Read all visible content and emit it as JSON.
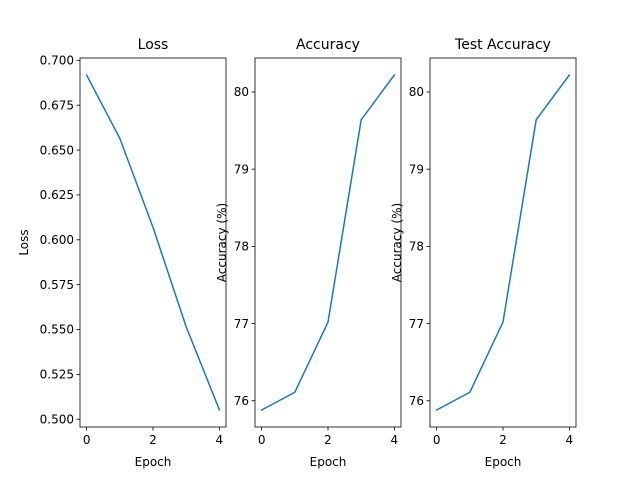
{
  "chart_data": [
    {
      "type": "line",
      "title": "Loss",
      "xlabel": "Epoch",
      "ylabel": "Loss",
      "x": [
        0,
        1,
        2,
        3,
        4
      ],
      "values": [
        0.6918,
        0.6565,
        0.6069,
        0.5515,
        0.5053
      ],
      "xlim": [
        -0.2,
        4.2
      ],
      "ylim": [
        0.4957,
        0.7013
      ],
      "xticks": [
        0,
        2,
        4
      ],
      "yticks": [
        0.5,
        0.525,
        0.55,
        0.575,
        0.6,
        0.625,
        0.65,
        0.675,
        0.7
      ],
      "ytick_labels": [
        "0.500",
        "0.525",
        "0.550",
        "0.575",
        "0.600",
        "0.625",
        "0.650",
        "0.675",
        "0.700"
      ],
      "color": "#1f77b4"
    },
    {
      "type": "line",
      "title": "Accuracy",
      "xlabel": "Epoch",
      "ylabel": "Accuracy (%)",
      "x": [
        0,
        1,
        2,
        3,
        4
      ],
      "values": [
        75.88,
        76.11,
        77.02,
        79.64,
        80.22
      ],
      "xlim": [
        -0.2,
        4.2
      ],
      "ylim": [
        75.66,
        80.44
      ],
      "xticks": [
        0,
        2,
        4
      ],
      "yticks": [
        76,
        77,
        78,
        79,
        80
      ],
      "ytick_labels": [
        "76",
        "77",
        "78",
        "79",
        "80"
      ],
      "color": "#1f77b4"
    },
    {
      "type": "line",
      "title": "Test Accuracy",
      "xlabel": "Epoch",
      "ylabel": "Accuracy (%)",
      "x": [
        0,
        1,
        2,
        3,
        4
      ],
      "values": [
        75.88,
        76.11,
        77.02,
        79.64,
        80.22
      ],
      "xlim": [
        -0.2,
        4.2
      ],
      "ylim": [
        75.66,
        80.44
      ],
      "xticks": [
        0,
        2,
        4
      ],
      "yticks": [
        76,
        77,
        78,
        79,
        80
      ],
      "ytick_labels": [
        "76",
        "77",
        "78",
        "79",
        "80"
      ],
      "color": "#1f77b4"
    }
  ]
}
